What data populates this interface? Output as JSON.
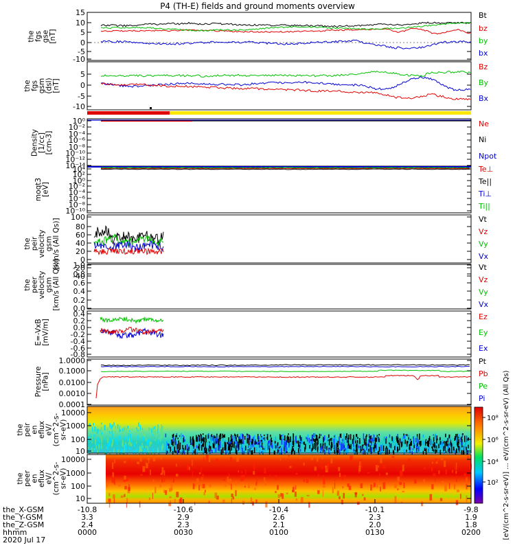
{
  "title": "P4 (TH-E) fields and ground moments overview",
  "panels": [
    {
      "id": "fgs_gse",
      "ylabel": [
        "the",
        "fgs",
        "gse",
        "[nT]"
      ],
      "ticks": [
        "15",
        "10",
        "5",
        "0",
        "-5",
        "-10"
      ],
      "legend": [
        {
          "text": "Bt",
          "color": "#000000"
        },
        {
          "text": "bz",
          "color": "#e00000"
        },
        {
          "text": "by",
          "color": "#00c000"
        },
        {
          "text": "bx",
          "color": "#0000d0"
        }
      ]
    },
    {
      "id": "fgs_gsm",
      "ylabel": [
        "the",
        "fgs",
        "gsm",
        "(dsl)",
        "[nT]"
      ],
      "ticks": [
        "5",
        "0",
        "-5",
        "-10"
      ],
      "legend": [
        {
          "text": "Bz",
          "color": "#e00000"
        },
        {
          "text": "By",
          "color": "#00c000"
        },
        {
          "text": "Bx",
          "color": "#0000d0"
        }
      ]
    },
    {
      "id": "density",
      "ylabel": [
        "Density",
        "[1/cc]",
        "[cm-3]"
      ],
      "ticks": [
        "10⁰",
        "10⁻²",
        "10⁻⁴",
        "10⁻⁶",
        "10⁻⁸",
        "10⁻¹⁰",
        "10⁻¹²",
        "10⁻¹⁴"
      ],
      "legend": [
        {
          "text": "Ne",
          "color": "#e00000"
        },
        {
          "text": "Ni",
          "color": "#000000"
        },
        {
          "text": "Npot",
          "color": "#0000d0"
        }
      ]
    },
    {
      "id": "temperature",
      "ylabel": [
        "moqt3",
        "[eV]"
      ],
      "ticks": [
        "10⁴",
        "10²",
        "10⁰",
        "10⁻²",
        "10⁻⁴",
        "10⁻⁶",
        "10⁻⁸",
        "10⁻¹⁰"
      ],
      "legend": [
        {
          "text": "Te⊥",
          "color": "#e00000"
        },
        {
          "text": "Te||",
          "color": "#000000"
        },
        {
          "text": "Ti⊥",
          "color": "#0000d0"
        },
        {
          "text": "Ti||",
          "color": "#00c000"
        }
      ]
    },
    {
      "id": "peir_velocity",
      "ylabel": [
        "the",
        "peir",
        "velocity",
        "gsm",
        "[km/s (All Qs)]"
      ],
      "ticks": [
        "100",
        "80",
        "60",
        "40",
        "20",
        "0",
        "-20",
        "-40"
      ],
      "legend": [
        {
          "text": "Vt",
          "color": "#000000"
        },
        {
          "text": "Vz",
          "color": "#e00000"
        },
        {
          "text": "Vy",
          "color": "#00c000"
        },
        {
          "text": "Vx",
          "color": "#0000d0"
        }
      ]
    },
    {
      "id": "peer_velocity",
      "ylabel": [
        "the",
        "peer",
        "velocity",
        "gsm",
        "[km/s (All Qs)]"
      ],
      "ticks": [
        "1.0",
        "0.8",
        "0.6",
        "0.4",
        "0.2",
        "0.0"
      ],
      "legend": [
        {
          "text": "Vt",
          "color": "#000000"
        },
        {
          "text": "Vz",
          "color": "#e00000"
        },
        {
          "text": "Vy",
          "color": "#00c000"
        },
        {
          "text": "Vx",
          "color": "#0000d0"
        }
      ]
    },
    {
      "id": "efield",
      "ylabel": [
        "E=-VxB",
        "[mV/m]"
      ],
      "ticks": [
        "0.4",
        "0.2",
        "0.0",
        "-0.2",
        "-0.4",
        "-0.6",
        "-0.8"
      ],
      "legend": [
        {
          "text": "Ez",
          "color": "#e00000"
        },
        {
          "text": "Ey",
          "color": "#00c000"
        },
        {
          "text": "Ex",
          "color": "#0000d0"
        }
      ]
    },
    {
      "id": "pressure",
      "ylabel": [
        "Pressure",
        "[nPa]"
      ],
      "ticks": [
        "1.0000",
        "0.1000",
        "0.0100",
        "0.0010",
        "0.0001"
      ],
      "legend": [
        {
          "text": "Pt",
          "color": "#000000"
        },
        {
          "text": "Pb",
          "color": "#e00000"
        },
        {
          "text": "Pe",
          "color": "#00c000"
        },
        {
          "text": "Pi",
          "color": "#0000d0"
        }
      ]
    },
    {
      "id": "peir_eflux",
      "ylabel": [
        "the",
        "peir",
        "en",
        "eflux",
        "eV/",
        "(cm^2-s-",
        "sr-eV)"
      ],
      "ticks": [
        "10000",
        "1000",
        "100",
        "10"
      ]
    },
    {
      "id": "peer_eflux",
      "ylabel": [
        "the",
        "peer",
        "en",
        "eflux",
        "eV/",
        "(cm^2-s-",
        "sr-eV)"
      ],
      "ticks": [
        "10000",
        "1000",
        "100",
        "10"
      ]
    }
  ],
  "colorbar": {
    "ticks": [
      "10⁸",
      "10⁶",
      "10⁴",
      "10²"
    ],
    "label": "[eV/(cm^2-s-sr-eV)] ... eV/(cm^2-s-sr-eV) (All Qs)"
  },
  "xaxis": {
    "row_labels": [
      "the_X-GSM",
      "the_Y-GSM",
      "the_Z-GSM",
      "hhmm",
      "2020 Jul 17"
    ],
    "ticks": [
      {
        "x": "-10.8",
        "y": "3.3",
        "z": "2.4",
        "t": "0000"
      },
      {
        "x": "-10.6",
        "y": "2.9",
        "z": "2.3",
        "t": "0030"
      },
      {
        "x": "-10.4",
        "y": "2.6",
        "z": "2.1",
        "t": "0100"
      },
      {
        "x": "-10.1",
        "y": "2.3",
        "z": "2.0",
        "t": "0130"
      },
      {
        "x": "-9.8",
        "y": "1.9",
        "z": "1.8",
        "t": "0200"
      }
    ]
  },
  "chart_data": {
    "type": "line",
    "title": "P4 (TH-E) fields and ground moments overview",
    "x_axis_label": "hhmm",
    "x_range": [
      "0000",
      "0200"
    ],
    "date": "2020 Jul 17",
    "series_fgs_gse": [
      {
        "name": "Bt",
        "mean": 10
      },
      {
        "name": "bz",
        "mean": 6
      },
      {
        "name": "by",
        "mean": 7
      },
      {
        "name": "bx",
        "mean": -1
      }
    ],
    "series_fgs_gsm": [
      {
        "name": "Bz",
        "mean": -2
      },
      {
        "name": "By",
        "mean": 3
      },
      {
        "name": "Bx",
        "mean": 0
      }
    ],
    "series_pressure": [
      {
        "name": "Pt",
        "mean": 0.4
      },
      {
        "name": "Pb",
        "mean": 0.035
      },
      {
        "name": "Pe",
        "mean": 0.09
      }
    ],
    "ylim_fgs_gse": [
      -10,
      15
    ],
    "ylim_fgs_gsm": [
      -12,
      8
    ],
    "ylim_peir_velocity": [
      -40,
      100
    ],
    "ylim_efield": [
      -0.8,
      0.4
    ],
    "ylim_pressure": [
      0.0001,
      1.0
    ],
    "energy_range": [
      5,
      30000
    ]
  }
}
